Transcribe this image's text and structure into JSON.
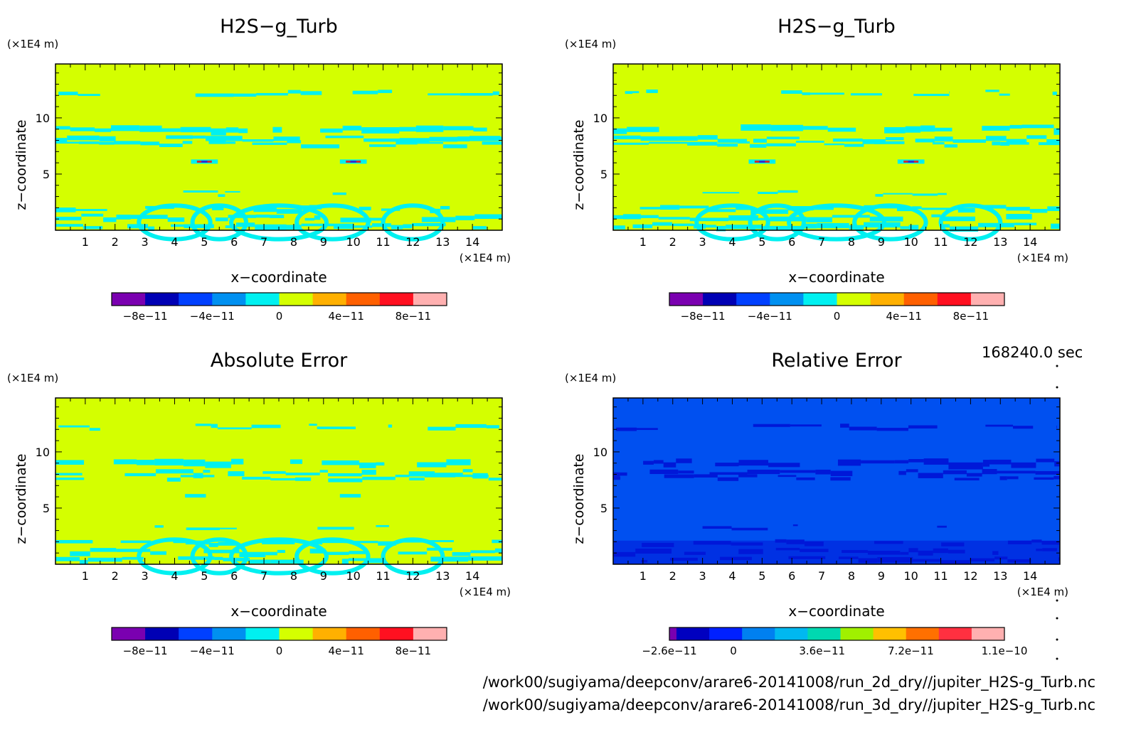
{
  "time_label": "168240.0 sec",
  "files": [
    "/work00/sugiyama/deepconv/arare6-20141008/run_2d_dry//jupiter_H2S-g_Turb.nc",
    "/work00/sugiyama/deepconv/arare6-20141008/run_3d_dry//jupiter_H2S-g_Turb.nc"
  ],
  "colors": {
    "field_base": "#d4ff00",
    "field_pattern": "#00f0f0",
    "relerr_base": "#0050f0",
    "relerr_pattern": "#0018d8",
    "diverging_scale": [
      "#7a00b0",
      "#0000b4",
      "#0040ff",
      "#0090f0",
      "#00f0f0",
      "#d4ff00",
      "#ffb000",
      "#ff6000",
      "#ff1020",
      "#ffb0b0"
    ],
    "relerr_scale": [
      "#7a00b0",
      "#0000c0",
      "#0020ff",
      "#0080f0",
      "#00b8f0",
      "#00d8b0",
      "#a0f000",
      "#ffc000",
      "#ff7000",
      "#ff3040",
      "#ffb0b0"
    ]
  },
  "chart_data": [
    {
      "type": "heatmap",
      "title": "H2S−g_Turb",
      "xlabel": "x−coordinate",
      "ylabel": "z−coordinate",
      "xunit": "(×1E4 m)",
      "yunit": "(×1E4 m)",
      "xlim": [
        0,
        15
      ],
      "ylim": [
        0,
        14.8
      ],
      "xticks": [
        "1",
        "2",
        "3",
        "4",
        "5",
        "6",
        "7",
        "8",
        "9",
        "10",
        "11",
        "12",
        "13",
        "14"
      ],
      "yticks": [
        "5",
        "10"
      ],
      "colorbar_ticks": [
        "−8e−11",
        "−4e−11",
        "0",
        "4e−11",
        "8e−11"
      ],
      "colorbar_range": [
        -1e-10,
        1e-10
      ],
      "grid": false
    },
    {
      "type": "heatmap",
      "title": "H2S−g_Turb",
      "xlabel": "x−coordinate",
      "ylabel": "z−coordinate",
      "xunit": "(×1E4 m)",
      "yunit": "(×1E4 m)",
      "xlim": [
        0,
        15
      ],
      "ylim": [
        0,
        14.8
      ],
      "xticks": [
        "1",
        "2",
        "3",
        "4",
        "5",
        "6",
        "7",
        "8",
        "9",
        "10",
        "11",
        "12",
        "13",
        "14"
      ],
      "yticks": [
        "5",
        "10"
      ],
      "colorbar_ticks": [
        "−8e−11",
        "−4e−11",
        "0",
        "4e−11",
        "8e−11"
      ],
      "colorbar_range": [
        -1e-10,
        1e-10
      ],
      "grid": false
    },
    {
      "type": "heatmap",
      "title": "Absolute Error",
      "xlabel": "x−coordinate",
      "ylabel": "z−coordinate",
      "xunit": "(×1E4 m)",
      "yunit": "(×1E4 m)",
      "xlim": [
        0,
        15
      ],
      "ylim": [
        0,
        14.8
      ],
      "xticks": [
        "1",
        "2",
        "3",
        "4",
        "5",
        "6",
        "7",
        "8",
        "9",
        "10",
        "11",
        "12",
        "13",
        "14"
      ],
      "yticks": [
        "5",
        "10"
      ],
      "colorbar_ticks": [
        "−8e−11",
        "−4e−11",
        "0",
        "4e−11",
        "8e−11"
      ],
      "colorbar_range": [
        -1e-10,
        1e-10
      ],
      "grid": false
    },
    {
      "type": "heatmap",
      "title": "Relative Error",
      "xlabel": "x−coordinate",
      "ylabel": "z−coordinate",
      "xunit": "(×1E4 m)",
      "yunit": "(×1E4 m)",
      "xlim": [
        0,
        15
      ],
      "ylim": [
        0,
        14.8
      ],
      "xticks": [
        "1",
        "2",
        "3",
        "4",
        "5",
        "6",
        "7",
        "8",
        "9",
        "10",
        "11",
        "12",
        "13",
        "14"
      ],
      "yticks": [
        "5",
        "10"
      ],
      "colorbar_ticks": [
        "−2.6e−11",
        "0",
        "3.6e−11",
        "7.2e−11",
        "1.1e−10"
      ],
      "colorbar_range": [
        -2.6e-11,
        1.1e-10
      ],
      "grid": false
    }
  ]
}
